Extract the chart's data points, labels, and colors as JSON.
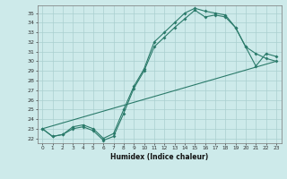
{
  "xlabel": "Humidex (Indice chaleur)",
  "xlim": [
    -0.5,
    23.5
  ],
  "ylim": [
    21.5,
    35.8
  ],
  "xticks": [
    0,
    1,
    2,
    3,
    4,
    5,
    6,
    7,
    8,
    9,
    10,
    11,
    12,
    13,
    14,
    15,
    16,
    17,
    18,
    19,
    20,
    21,
    22,
    23
  ],
  "yticks": [
    22,
    23,
    24,
    25,
    26,
    27,
    28,
    29,
    30,
    31,
    32,
    33,
    34,
    35
  ],
  "line_color": "#2a7a6a",
  "bg_color": "#cdeaea",
  "grid_color": "#aacfcf",
  "line1_x": [
    0,
    1,
    2,
    3,
    4,
    5,
    6,
    7,
    8,
    9,
    10,
    11,
    12,
    13,
    14,
    15,
    16,
    17,
    18,
    19,
    20,
    21,
    22,
    23
  ],
  "line1_y": [
    23.0,
    22.2,
    22.4,
    23.0,
    23.2,
    22.8,
    21.8,
    22.2,
    24.6,
    27.2,
    29.0,
    31.5,
    32.5,
    33.5,
    34.4,
    35.3,
    34.6,
    34.8,
    34.6,
    33.5,
    31.5,
    30.8,
    30.3,
    30.0
  ],
  "line2_x": [
    0,
    1,
    2,
    3,
    4,
    5,
    6,
    7,
    8,
    9,
    10,
    11,
    12,
    13,
    14,
    15,
    16,
    17,
    18,
    19,
    20,
    21,
    22,
    23
  ],
  "line2_y": [
    23.0,
    22.2,
    22.4,
    23.2,
    23.4,
    23.0,
    22.0,
    22.5,
    25.0,
    27.4,
    29.2,
    32.0,
    33.0,
    34.0,
    35.0,
    35.5,
    35.2,
    35.0,
    34.8,
    33.5,
    31.5,
    29.5,
    30.8,
    30.5
  ],
  "line3_x": [
    0,
    23
  ],
  "line3_y": [
    23.0,
    30.0
  ]
}
